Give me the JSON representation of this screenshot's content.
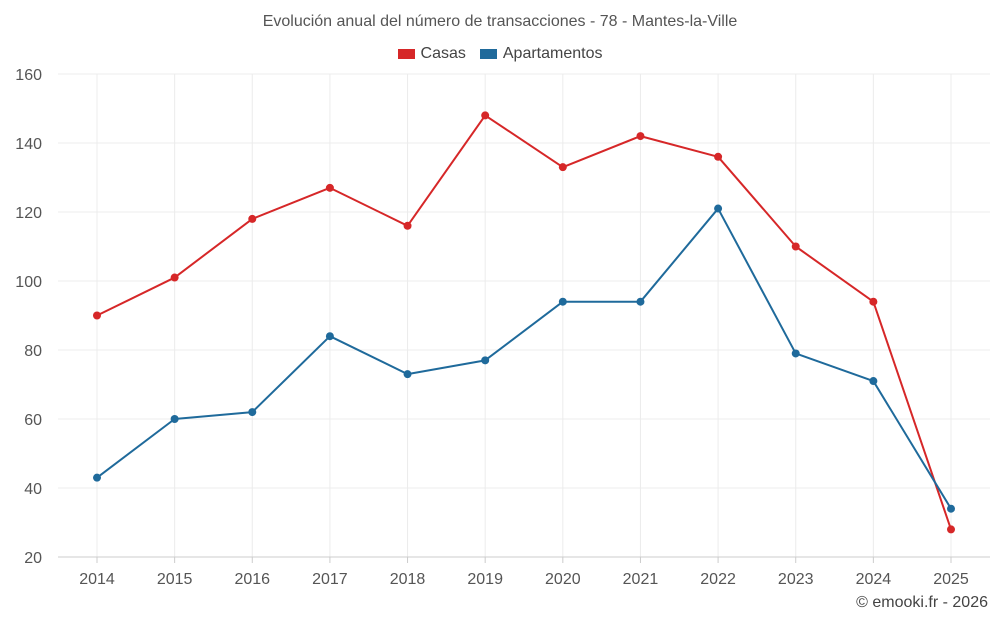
{
  "chart_data": {
    "type": "line",
    "title": "Evolución anual del número de transacciones - 78 - Mantes-la-Ville",
    "categories": [
      "2014",
      "2015",
      "2016",
      "2017",
      "2018",
      "2019",
      "2020",
      "2021",
      "2022",
      "2023",
      "2024",
      "2025"
    ],
    "series": [
      {
        "name": "Casas",
        "color": "#d62728",
        "values": [
          90,
          101,
          118,
          127,
          116,
          148,
          133,
          142,
          136,
          110,
          94,
          28
        ]
      },
      {
        "name": "Apartamentos",
        "color": "#1f6a9b",
        "values": [
          43,
          60,
          62,
          84,
          73,
          77,
          94,
          94,
          121,
          79,
          71,
          34
        ]
      }
    ],
    "ylim": [
      20,
      160
    ],
    "yticks": [
      20,
      40,
      60,
      80,
      100,
      120,
      140,
      160
    ],
    "xlabel": "",
    "ylabel": "",
    "grid": true,
    "legend_position": "top-center"
  },
  "footer": {
    "credit": "© emooki.fr - 2026"
  }
}
